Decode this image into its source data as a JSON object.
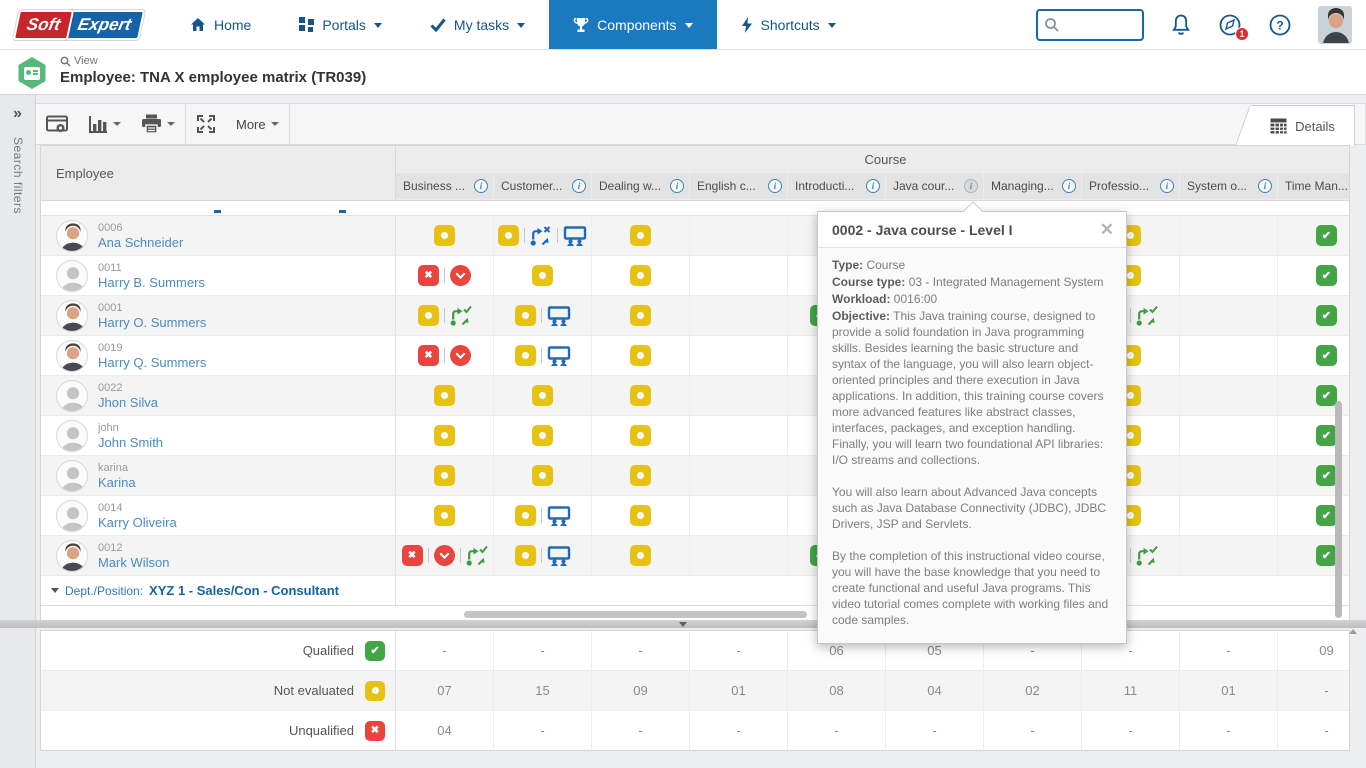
{
  "nav": {
    "logo": {
      "part1": "Soft",
      "part2": "Expert"
    },
    "items": [
      {
        "label": "Home",
        "icon": "home-icon",
        "caret": false,
        "active": false
      },
      {
        "label": "Portals",
        "icon": "portals-icon",
        "caret": true,
        "active": false
      },
      {
        "label": "My tasks",
        "icon": "tasks-check-icon",
        "caret": true,
        "active": false
      },
      {
        "label": "Components",
        "icon": "components-trophy-icon",
        "caret": true,
        "active": true
      },
      {
        "label": "Shortcuts",
        "icon": "shortcuts-bolt-icon",
        "caret": true,
        "active": false
      }
    ],
    "search_placeholder": "",
    "notification_badge": "1"
  },
  "page_header": {
    "view_label": "View",
    "title": "Employee: TNA X employee matrix (TR039)"
  },
  "sidebar": {
    "expand_glyph": "»",
    "label": "Search filters"
  },
  "toolbar": {
    "more_label": "More",
    "details_tab_label": "Details"
  },
  "table": {
    "employee_header": "Employee",
    "course_header": "Course",
    "columns": [
      {
        "label": "Business ...",
        "has_info": true,
        "info_active": false
      },
      {
        "label": "Customer...",
        "has_info": true,
        "info_active": false
      },
      {
        "label": "Dealing w...",
        "has_info": true,
        "info_active": false
      },
      {
        "label": "English c...",
        "has_info": true,
        "info_active": false
      },
      {
        "label": "Introducti...",
        "has_info": true,
        "info_active": false
      },
      {
        "label": "Java cour...",
        "has_info": true,
        "info_active": true
      },
      {
        "label": "Managing...",
        "has_info": true,
        "info_active": false
      },
      {
        "label": "Professio...",
        "has_info": true,
        "info_active": false
      },
      {
        "label": "System o...",
        "has_info": true,
        "info_active": false
      },
      {
        "label": "Time Man...",
        "has_info": false,
        "info_active": false
      }
    ],
    "rows": [
      {
        "code": "0006",
        "name": "Ana Schneider",
        "avatar": "photo",
        "cells": [
          [
            "ne"
          ],
          [
            "ne",
            "plan-x",
            "class"
          ],
          [
            "ne"
          ],
          [],
          [],
          [],
          [],
          [
            "ne"
          ],
          [],
          [
            "q"
          ]
        ]
      },
      {
        "code": "0011",
        "name": "Harry B. Summers",
        "avatar": "placeholder",
        "cells": [
          [
            "uq",
            "down"
          ],
          [
            "ne"
          ],
          [
            "ne"
          ],
          [],
          [],
          [],
          [],
          [
            "ne"
          ],
          [],
          [
            "q"
          ]
        ]
      },
      {
        "code": "0001",
        "name": "Harry O. Summers",
        "avatar": "photo",
        "cells": [
          [
            "ne",
            "plan-ok"
          ],
          [
            "ne",
            "class"
          ],
          [
            "ne"
          ],
          [],
          [
            "q",
            "plan-ok"
          ],
          [],
          [],
          [
            "ne",
            "plan-ok"
          ],
          [],
          [
            "q"
          ]
        ]
      },
      {
        "code": "0019",
        "name": "Harry Q. Summers",
        "avatar": "photo",
        "cells": [
          [
            "uq",
            "down"
          ],
          [
            "ne",
            "class"
          ],
          [
            "ne"
          ],
          [],
          [],
          [],
          [],
          [
            "ne"
          ],
          [],
          [
            "q"
          ]
        ]
      },
      {
        "code": "0022",
        "name": "Jhon Silva",
        "avatar": "placeholder",
        "cells": [
          [
            "ne"
          ],
          [
            "ne"
          ],
          [
            "ne"
          ],
          [],
          [],
          [],
          [],
          [
            "ne"
          ],
          [],
          [
            "q"
          ]
        ]
      },
      {
        "code": "john",
        "name": "John Smith",
        "avatar": "placeholder",
        "cells": [
          [
            "ne"
          ],
          [
            "ne"
          ],
          [
            "ne"
          ],
          [],
          [],
          [],
          [],
          [
            "ne"
          ],
          [],
          [
            "q"
          ]
        ]
      },
      {
        "code": "karina",
        "name": "Karina",
        "avatar": "placeholder",
        "cells": [
          [
            "ne"
          ],
          [
            "ne"
          ],
          [
            "ne"
          ],
          [],
          [],
          [],
          [],
          [
            "ne"
          ],
          [],
          [
            "q"
          ]
        ]
      },
      {
        "code": "0014",
        "name": "Karry Oliveira",
        "avatar": "placeholder",
        "cells": [
          [
            "ne"
          ],
          [
            "ne",
            "class"
          ],
          [
            "ne"
          ],
          [],
          [],
          [],
          [],
          [
            "ne"
          ],
          [],
          [
            "q"
          ]
        ]
      },
      {
        "code": "0012",
        "name": "Mark Wilson",
        "avatar": "photo",
        "cells": [
          [
            "uq",
            "down",
            "plan-ok"
          ],
          [
            "ne",
            "class"
          ],
          [
            "ne"
          ],
          [],
          [
            "q",
            "plan-ok"
          ],
          [],
          [],
          [
            "ne",
            "plan-ok"
          ],
          [],
          [
            "q"
          ]
        ]
      }
    ],
    "group_row": {
      "prefix": "Dept./Position:",
      "value": "XYZ 1 - Sales/Con - Consultant"
    }
  },
  "popup": {
    "title": "0002 - Java course - Level I",
    "fields": [
      {
        "label": "Type:",
        "value": "Course"
      },
      {
        "label": "Course type:",
        "value": "03 - Integrated Management System"
      },
      {
        "label": "Workload:",
        "value": "0016:00"
      }
    ],
    "objective_label": "Objective:",
    "objective_text": "This Java training course, designed to provide a solid foundation in Java programming skills. Besides learning the basic structure and syntax of the language, you will also learn object-oriented principles and there execution in Java applications. In addition, this training course covers more advanced features like abstract classes, interfaces, packages, and exception handling. Finally, you will learn two foundational API libraries: I/O streams and collections.",
    "paragraph2": "You will also learn about Advanced Java concepts such as Java Database Connectivity (JDBC), JDBC Drivers, JSP and Servlets.",
    "paragraph3": "By the completion of this instructional video course, you will have the base knowledge that you need to create functional and useful Java programs. This video tutorial comes complete with working files and code samples."
  },
  "summary": {
    "rows": [
      {
        "label": "Qualified",
        "icon": "q",
        "values": [
          "-",
          "-",
          "-",
          "-",
          "06",
          "05",
          "-",
          "-",
          "-",
          "09"
        ]
      },
      {
        "label": "Not evaluated",
        "icon": "ne",
        "values": [
          "07",
          "15",
          "09",
          "01",
          "08",
          "04",
          "02",
          "11",
          "01",
          "-"
        ]
      },
      {
        "label": "Unqualified",
        "icon": "uq",
        "values": [
          "04",
          "-",
          "-",
          "-",
          "-",
          "-",
          "-",
          "-",
          "-",
          "-"
        ]
      }
    ]
  },
  "status_legend": {
    "ne": "not-evaluated",
    "uq": "unqualified",
    "q": "qualified",
    "down": "below-required-level",
    "class": "classroom-training",
    "plan-x": "development-plan-cancelled",
    "plan-ok": "development-plan-completed"
  },
  "colors": {
    "nav_active": "#1b79c0",
    "logo_red": "#c8242b",
    "logo_blue": "#1563a8",
    "yellow": "#e7c214",
    "red": "#e8453f",
    "green": "#44a546",
    "blue_icon": "#1f6cb5",
    "link_blue": "#4a8bc2",
    "group_blue": "#1464a5",
    "badge_green": "#57b87b"
  }
}
